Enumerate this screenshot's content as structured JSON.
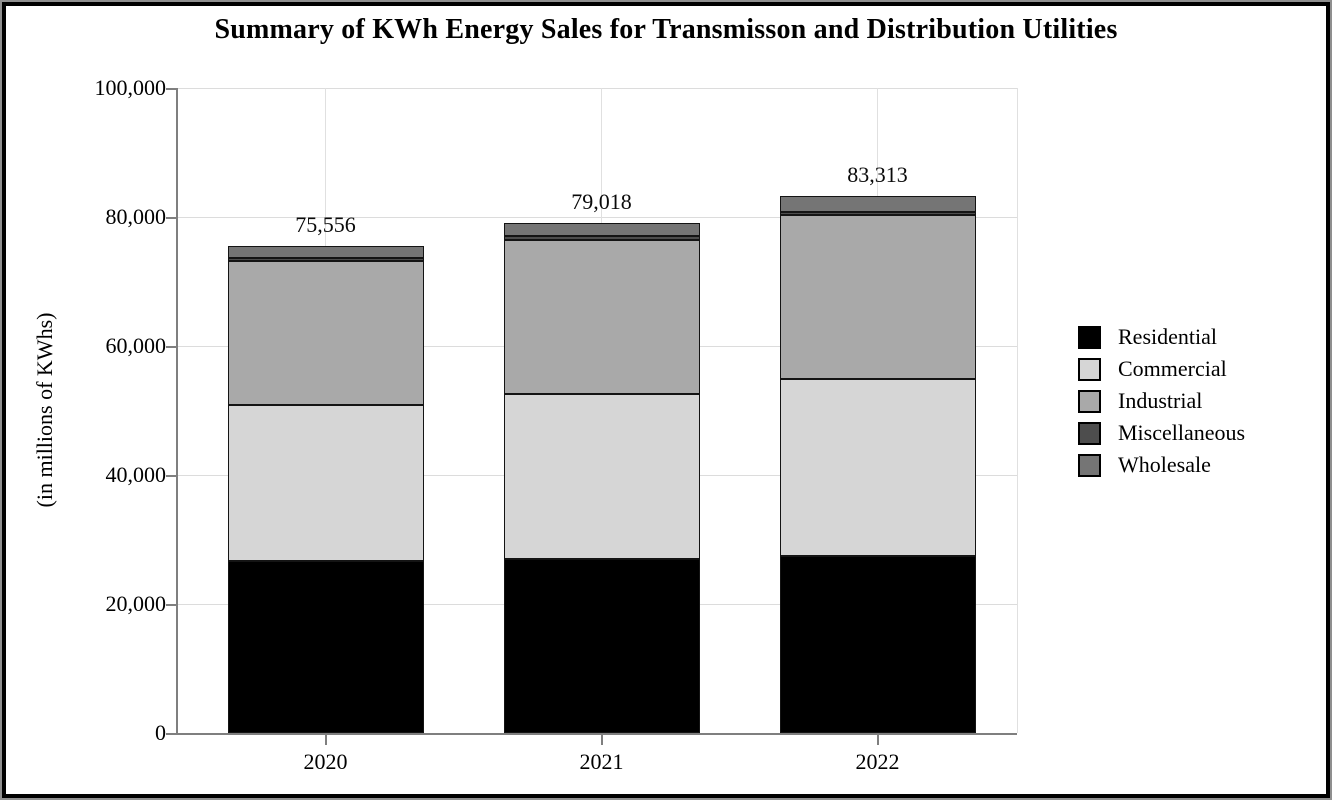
{
  "title": "Summary of KWh Energy Sales for Transmisson and Distribution Utilities",
  "y_axis": {
    "label": "(in millions of KWhs)",
    "ticks": [
      "0",
      "20,000",
      "40,000",
      "60,000",
      "80,000",
      "100,000"
    ]
  },
  "x_axis": {
    "categories": [
      "2020",
      "2021",
      "2022"
    ]
  },
  "bar_total_labels": [
    "75,556",
    "79,018",
    "83,313"
  ],
  "chart_data": {
    "type": "bar",
    "stacked": true,
    "title": "Summary of KWh Energy Sales for Transmisson and Distribution Utilities",
    "xlabel": "",
    "ylabel": "(in millions of KWhs)",
    "ylim": [
      0,
      100000
    ],
    "ytick_values": [
      0,
      20000,
      40000,
      60000,
      80000,
      100000
    ],
    "grid": "horizontal gridlines every 20,000; faint vertical gridlines at category centers and right plot edge",
    "legend_position": "right",
    "categories": [
      "2020",
      "2021",
      "2022"
    ],
    "series": [
      {
        "name": "Residential",
        "color": "#000000",
        "values": [
          26600,
          26900,
          27400
        ]
      },
      {
        "name": "Commercial",
        "color": "#d6d6d6",
        "values": [
          24300,
          25600,
          27550
        ]
      },
      {
        "name": "Industrial",
        "color": "#a9a9a9",
        "values": [
          22250,
          24000,
          25300
        ]
      },
      {
        "name": "Miscellaneous",
        "color": "#4d4d4d",
        "values": [
          470,
          480,
          480
        ]
      },
      {
        "name": "Wholesale",
        "color": "#757575",
        "values": [
          1936,
          2038,
          2583
        ]
      }
    ],
    "totals": [
      75556,
      79018,
      83313
    ],
    "total_labels": [
      "75,556",
      "79,018",
      "83,313"
    ],
    "colors": {
      "axis": "#7f7f7f",
      "gridline": "#dcdcdc",
      "segment_border": "#141414",
      "background": "#ffffff",
      "frame_outer": "#8f8f8f",
      "frame_inner": "#000000"
    }
  },
  "legend": {
    "items": [
      {
        "label": "Residential",
        "color": "#000000"
      },
      {
        "label": "Commercial",
        "color": "#d6d6d6"
      },
      {
        "label": "Industrial",
        "color": "#a9a9a9"
      },
      {
        "label": "Miscellaneous",
        "color": "#4d4d4d"
      },
      {
        "label": "Wholesale",
        "color": "#757575"
      }
    ]
  }
}
